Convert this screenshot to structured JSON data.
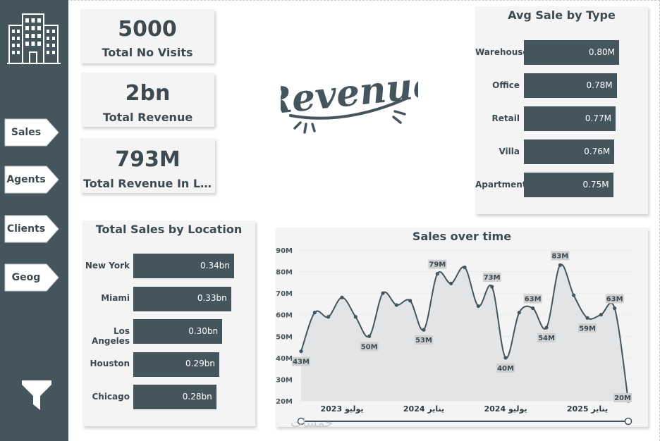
{
  "colors": {
    "sidebar": "#45555e",
    "bar": "#45555e",
    "card": "#f4f4f4",
    "text": "#3d4a51",
    "area": "#dfe1e2",
    "label_bg": "#d0d0d0"
  },
  "sidebar": {
    "logo_icon": "office-building-icon",
    "nav": [
      {
        "label": "Sales"
      },
      {
        "label": "Agents"
      },
      {
        "label": "Clients"
      },
      {
        "label": "Geog"
      }
    ],
    "filter_icon": "filter-funnel-icon"
  },
  "kpis": [
    {
      "value": "5000",
      "label": "Total No Visits"
    },
    {
      "value": "2bn",
      "label": "Total Revenue"
    },
    {
      "value": "793M",
      "label": "Total Revenue In Last..."
    }
  ],
  "revenue_logo_text": "Revenue",
  "watermark": "خمسات",
  "chart_data": [
    {
      "type": "bar",
      "orientation": "horizontal",
      "title": "Avg Sale by Type",
      "categories": [
        "Warehouse",
        "Office",
        "Retail",
        "Villa",
        "Apartment"
      ],
      "values": [
        0.8,
        0.78,
        0.77,
        0.76,
        0.75
      ],
      "value_labels": [
        "0.80M",
        "0.78M",
        "0.77M",
        "0.76M",
        "0.75M"
      ],
      "xlim": [
        0,
        0.8
      ]
    },
    {
      "type": "bar",
      "orientation": "horizontal",
      "title": "Total Sales by Location",
      "categories": [
        "New York",
        "Miami",
        "Los Angeles",
        "Houston",
        "Chicago"
      ],
      "values": [
        0.34,
        0.33,
        0.3,
        0.29,
        0.28
      ],
      "value_labels": [
        "0.34bn",
        "0.33bn",
        "0.30bn",
        "0.29bn",
        "0.28bn"
      ],
      "xlim": [
        0,
        0.34
      ]
    },
    {
      "type": "area",
      "title": "Sales over time",
      "y_ticks": [
        "90M",
        "80M",
        "70M",
        "60M",
        "50M",
        "40M",
        "30M",
        "20M"
      ],
      "ylim": [
        20,
        90
      ],
      "x_ticks": [
        {
          "label": "يوليو 2023",
          "index": 3
        },
        {
          "label": "يناير 2024",
          "index": 9
        },
        {
          "label": "يوليو 2024",
          "index": 15
        },
        {
          "label": "يناير 2025",
          "index": 21
        }
      ],
      "values": [
        43,
        61,
        59,
        68,
        59,
        50,
        70,
        64.5,
        66.5,
        53,
        79,
        74.5,
        82,
        64,
        73,
        40,
        61,
        63,
        54,
        83,
        69,
        58.5,
        60,
        63,
        20
      ],
      "labeled_points": [
        {
          "index": 0,
          "label": "43M",
          "pos": "below"
        },
        {
          "index": 5,
          "label": "50M",
          "pos": "below"
        },
        {
          "index": 9,
          "label": "53M",
          "pos": "below"
        },
        {
          "index": 10,
          "label": "79M",
          "pos": "above"
        },
        {
          "index": 14,
          "label": "73M",
          "pos": "above"
        },
        {
          "index": 15,
          "label": "40M",
          "pos": "below"
        },
        {
          "index": 17,
          "label": "63M",
          "pos": "above"
        },
        {
          "index": 18,
          "label": "54M",
          "pos": "below"
        },
        {
          "index": 19,
          "label": "83M",
          "pos": "above"
        },
        {
          "index": 21,
          "label": "59M",
          "pos": "below"
        },
        {
          "index": 23,
          "label": "63M",
          "pos": "above"
        },
        {
          "index": 24,
          "label": "20M",
          "pos": "left"
        }
      ]
    }
  ]
}
